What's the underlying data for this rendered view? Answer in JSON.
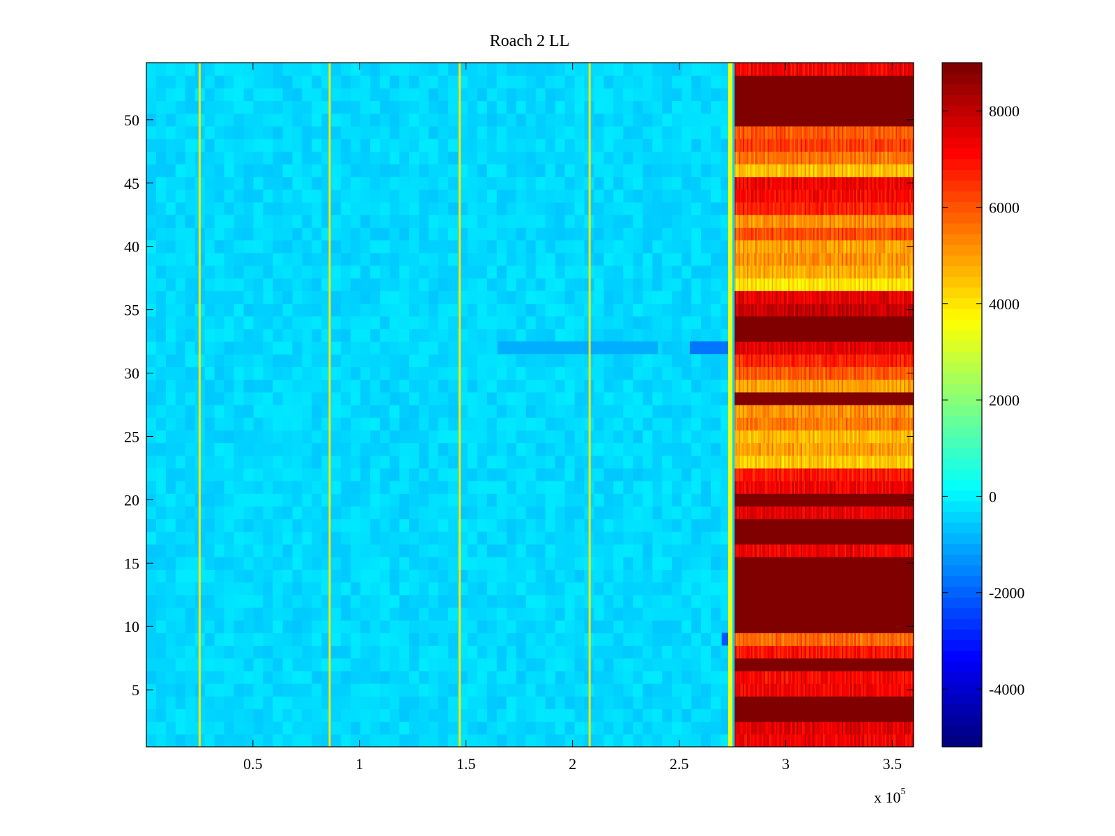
{
  "chart_data": {
    "type": "heatmap",
    "title": "Roach 2 LL",
    "xlabel": "",
    "ylabel": "",
    "x_multiplier_label": "x 10",
    "x_multiplier_exponent": "5",
    "xlim": [
      0,
      3.6
    ],
    "ylim": [
      0.5,
      54.5
    ],
    "x_ticks": [
      {
        "value": 0.5,
        "label": "0.5"
      },
      {
        "value": 1,
        "label": "1"
      },
      {
        "value": 1.5,
        "label": "1.5"
      },
      {
        "value": 2,
        "label": "2"
      },
      {
        "value": 2.5,
        "label": "2.5"
      },
      {
        "value": 3,
        "label": "3"
      },
      {
        "value": 3.5,
        "label": "3.5"
      }
    ],
    "y_ticks": [
      {
        "value": 5,
        "label": "5"
      },
      {
        "value": 10,
        "label": "10"
      },
      {
        "value": 15,
        "label": "15"
      },
      {
        "value": 20,
        "label": "20"
      },
      {
        "value": 25,
        "label": "25"
      },
      {
        "value": 30,
        "label": "30"
      },
      {
        "value": 35,
        "label": "35"
      },
      {
        "value": 40,
        "label": "40"
      },
      {
        "value": 45,
        "label": "45"
      },
      {
        "value": 50,
        "label": "50"
      }
    ],
    "colorbar": {
      "colormap": "jet",
      "range": [
        -5200,
        9000
      ],
      "ticks": [
        {
          "value": -4000,
          "label": "-4000"
        },
        {
          "value": -2000,
          "label": "-2000"
        },
        {
          "value": 0,
          "label": "0"
        },
        {
          "value": 2000,
          "label": "2000"
        },
        {
          "value": 4000,
          "label": "4000"
        },
        {
          "value": 6000,
          "label": "6000"
        },
        {
          "value": 8000,
          "label": "8000"
        }
      ]
    },
    "rows": 54,
    "step_x": 2.74,
    "baseline_value": 0,
    "vertical_spike_lines_x": [
      0.25,
      0.86,
      1.47,
      2.08
    ],
    "spike_value": 4000,
    "low_dips": [
      {
        "row": 32,
        "x_range": [
          2.55,
          2.73
        ],
        "value": -1800
      },
      {
        "row": 32,
        "x_range": [
          1.65,
          2.4
        ],
        "value": -1000
      },
      {
        "row": 9,
        "x_range": [
          2.7,
          2.73
        ],
        "value": -2200
      }
    ],
    "right_region_row_values": [
      7200,
      7400,
      8800,
      8800,
      7200,
      7000,
      8800,
      6800,
      5600,
      8800,
      8800,
      8800,
      8800,
      8800,
      8800,
      7200,
      8800,
      8800,
      7400,
      8800,
      7200,
      6800,
      4200,
      4800,
      4400,
      5400,
      5000,
      8800,
      4800,
      5800,
      6600,
      7400,
      8800,
      8800,
      7800,
      7400,
      3800,
      4600,
      5000,
      4800,
      6000,
      5000,
      6600,
      7000,
      7200,
      4400,
      5400,
      6200,
      5800,
      8800,
      8800,
      8800,
      8800,
      7200
    ]
  }
}
